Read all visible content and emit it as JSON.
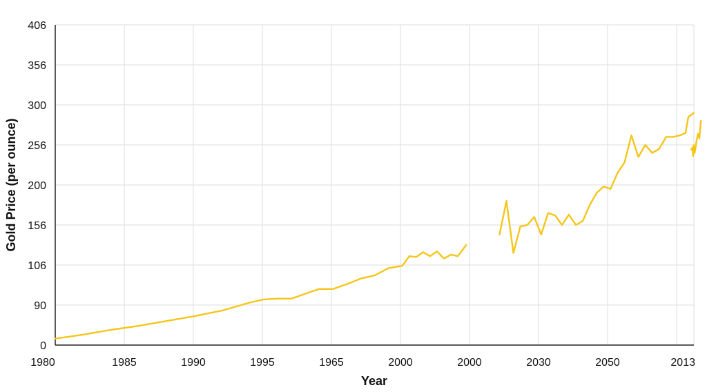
{
  "chart_data": {
    "type": "line",
    "xlabel": "Year",
    "ylabel": "Gold Price (per ounce)",
    "x_tick_labels": [
      "1980",
      "1985",
      "1990",
      "1995",
      "1965",
      "2000",
      "2000",
      "2030",
      "2050",
      "2013"
    ],
    "y_tick_labels": [
      "0",
      "90",
      "106",
      "156",
      "200",
      "256",
      "300",
      "356",
      "406"
    ],
    "xlim": [
      1980,
      2026
    ],
    "ylim": [
      0,
      400
    ],
    "grid": true,
    "legend": "none",
    "series": [
      {
        "color": "#f5c518",
        "segments": [
          {
            "x": [
              1980,
              1982,
              1984,
              1986,
              1987,
              1988,
              1990,
              1992,
              1994,
              1995,
              1996,
              1997,
              1998,
              1999,
              2000,
              2001,
              2002,
              2003,
              2004,
              2005,
              2005.5,
              2006,
              2006.5,
              2007,
              2007.5,
              2008,
              2008.5,
              2009,
              2009.3,
              2009.6
            ],
            "y": [
              8,
              13,
              19,
              24,
              27,
              30,
              36,
              43,
              53,
              57,
              58,
              58,
              64,
              70,
              70,
              76,
              83,
              87,
              96,
              99,
              111,
              110,
              116,
              111,
              117,
              108,
              113,
              111,
              118,
              125
            ]
          },
          {
            "x": [
              2012,
              2012.5,
              2013,
              2013.5,
              2014,
              2014.5,
              2015,
              2015.5,
              2016,
              2016.5,
              2017,
              2017.5,
              2018,
              2018.5,
              2019,
              2019.5,
              2020,
              2020.5,
              2021,
              2021.5,
              2022,
              2022.5,
              2023,
              2023.5,
              2024,
              2024.5,
              2025,
              2025.4,
              2025.6,
              2026
            ],
            "y": [
              138,
              180,
              115,
              148,
              150,
              160,
              138,
              165,
              162,
              150,
              163,
              150,
              155,
              175,
              190,
              198,
              195,
              215,
              228,
              262,
              235,
              250,
              240,
              245,
              260,
              260,
              262,
              265,
              285,
              290
            ]
          },
          {
            "x": [
              2025.8,
              2025.9,
              2025.95,
              2026,
              2026.05,
              2026.1,
              2026.2,
              2026.3,
              2026.4,
              2026.5
            ],
            "y": [
              244,
              247,
              236,
              250,
              240,
              244,
              256,
              264,
              258,
              280
            ]
          }
        ]
      }
    ]
  }
}
